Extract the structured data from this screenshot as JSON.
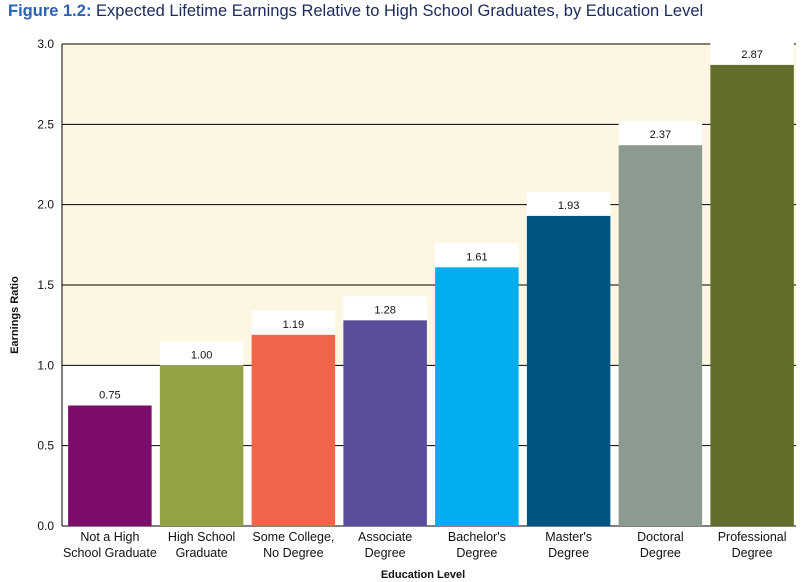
{
  "figure": {
    "label": "Figure 1.2:",
    "caption": " Expected Lifetime Earnings Relative to High School Graduates, by Education Level"
  },
  "chart_data": {
    "type": "bar",
    "title": "Figure 1.2: Expected Lifetime Earnings Relative to High School Graduates, by Education Level",
    "xlabel": "Education Level",
    "ylabel": "Earnings Ratio",
    "ylim": [
      0,
      3.0
    ],
    "yticks": [
      "0.0",
      "0.5",
      "1.0",
      "1.5",
      "2.0",
      "2.5",
      "3.0"
    ],
    "grid": true,
    "categories": [
      [
        "Not a High",
        "School Graduate"
      ],
      [
        "High School",
        "Graduate"
      ],
      [
        "Some College,",
        "No Degree"
      ],
      [
        "Associate",
        "Degree"
      ],
      [
        "Bachelor's",
        "Degree"
      ],
      [
        "Master's",
        "Degree"
      ],
      [
        "Doctoral",
        "Degree"
      ],
      [
        "Professional",
        "Degree"
      ]
    ],
    "values": [
      0.75,
      1.0,
      1.19,
      1.28,
      1.61,
      1.93,
      2.37,
      2.87
    ],
    "value_labels": [
      "0.75",
      "1.00",
      "1.19",
      "1.28",
      "1.61",
      "1.93",
      "2.37",
      "2.87"
    ],
    "colors": [
      "#7c0c6a",
      "#93a243",
      "#f06449",
      "#5a4d99",
      "#00aeef",
      "#005581",
      "#8c9a90",
      "#636e2c"
    ],
    "background_band_color": "#fcf6e2",
    "background_band_from": 1.0
  }
}
